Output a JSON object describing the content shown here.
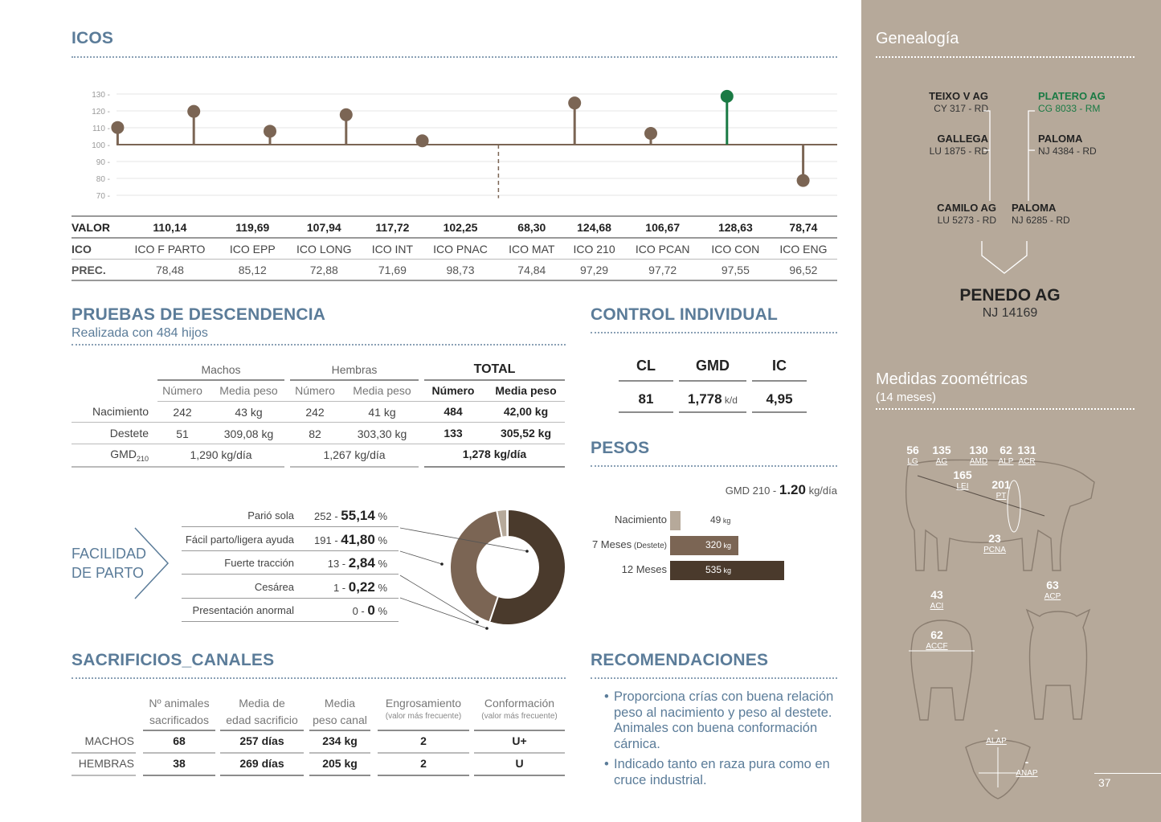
{
  "icos": {
    "title": "ICOS",
    "row_labels": {
      "valor": "VALOR",
      "ico": "ICO",
      "prec": "PREC."
    },
    "columns": [
      {
        "name": "ICO F PARTO",
        "valor": "110,14",
        "prec": "78,48"
      },
      {
        "name": "ICO EPP",
        "valor": "119,69",
        "prec": "85,12"
      },
      {
        "name": "ICO LONG",
        "valor": "107,94",
        "prec": "72,88"
      },
      {
        "name": "ICO INT",
        "valor": "117,72",
        "prec": "71,69"
      },
      {
        "name": "ICO PNAC",
        "valor": "102,25",
        "prec": "98,73"
      },
      {
        "name": "ICO MAT",
        "valor": "68,30",
        "prec": "74,84"
      },
      {
        "name": "ICO 210",
        "valor": "124,68",
        "prec": "97,29"
      },
      {
        "name": "ICO PCAN",
        "valor": "106,67",
        "prec": "97,72"
      },
      {
        "name": "ICO CON",
        "valor": "128,63",
        "prec": "97,55"
      },
      {
        "name": "ICO ENG",
        "valor": "78,74",
        "prec": "96,52"
      }
    ],
    "highlight_color": "#1a7a44",
    "accent_color": "#7b6554"
  },
  "chart_data": {
    "type": "scatter",
    "categories": [
      "ICO F PARTO",
      "ICO EPP",
      "ICO LONG",
      "ICO INT",
      "ICO PNAC",
      "ICO MAT",
      "ICO 210",
      "ICO PCAN",
      "ICO CON",
      "ICO ENG"
    ],
    "values": [
      110.14,
      119.69,
      107.94,
      117.72,
      102.25,
      68.3,
      124.68,
      106.67,
      128.63,
      78.74
    ],
    "baseline": 100,
    "ylim": [
      70,
      130
    ],
    "yticks": [
      "130 -",
      "120 -",
      "110 -",
      "100 -",
      "90 -",
      "80 -",
      "70 -"
    ],
    "grid": true,
    "highlight_index": 8,
    "dashed_index": 5
  },
  "descendencia": {
    "title": "PRUEBAS DE DESCENDENCIA",
    "subtitle": "Realizada con 484 hijos",
    "groups": {
      "machos": "Machos",
      "hembras": "Hembras",
      "total": "TOTAL"
    },
    "col_numero": "Número",
    "col_media": "Media peso",
    "rows": [
      {
        "label": "Nacimiento",
        "m_num": "242",
        "m_peso": "43 kg",
        "h_num": "242",
        "h_peso": "41 kg",
        "t_num": "484",
        "t_peso": "42,00 kg"
      },
      {
        "label": "Destete",
        "m_num": "51",
        "m_peso": "309,08 kg",
        "h_num": "82",
        "h_peso": "303,30 kg",
        "t_num": "133",
        "t_peso": "305,52 kg"
      }
    ],
    "gmd": {
      "label": "GMD",
      "sub": "210",
      "machos": "1,290 kg/día",
      "hembras": "1,267 kg/día",
      "total": "1,278 kg/día"
    }
  },
  "facilidad": {
    "title_line1": "FACILIDAD",
    "title_line2": "DE PARTO",
    "items": [
      {
        "label": "Parió sola",
        "count": "252 - ",
        "pct": "55,14",
        "unit": " %",
        "value": 55.14,
        "color": "#4a3a2c"
      },
      {
        "label": "Fácil parto/ligera ayuda",
        "count": "191 - ",
        "pct": "41,80",
        "unit": " %",
        "value": 41.8,
        "color": "#7b6554"
      },
      {
        "label": "Fuerte tracción",
        "count": "13 - ",
        "pct": "2,84",
        "unit": " %",
        "value": 2.84,
        "color": "#b6a99a"
      },
      {
        "label": "Cesárea",
        "count": "1 - ",
        "pct": "0,22",
        "unit": " %",
        "value": 0.22,
        "color": "#ddd"
      },
      {
        "label": "Presentación anormal",
        "count": "0 - ",
        "pct": "0",
        "unit": " %",
        "value": 0,
        "color": "#eee"
      }
    ]
  },
  "control": {
    "title": "CONTROL INDIVIDUAL",
    "headers": [
      "CL",
      "GMD",
      "IC"
    ],
    "values": {
      "cl": "81",
      "gmd": "1,778",
      "gmd_unit": " k/d",
      "ic": "4,95"
    }
  },
  "pesos": {
    "title": "PESOS",
    "gmd_label": "GMD 210 - ",
    "gmd_value": "1.20",
    "gmd_unit": " kg/día",
    "bars": [
      {
        "label": "Nacimiento",
        "label_small": "",
        "value": 49,
        "value_text": "49",
        "unit": " kg",
        "color": "#b6a99a"
      },
      {
        "label": "7 Meses",
        "label_small": " (Destete)",
        "value": 320,
        "value_text": "320",
        "unit": " kg",
        "color": "#7b6554"
      },
      {
        "label": "12 Meses",
        "label_small": "",
        "value": 535,
        "value_text": "535",
        "unit": " kg",
        "color": "#4a3a2c"
      }
    ]
  },
  "sacrificios": {
    "title": "SACRIFICIOS_CANALES",
    "headers": [
      {
        "l1": "Nº animales",
        "l2": "sacrificados",
        "small": ""
      },
      {
        "l1": "Media de",
        "l2": "edad sacrificio",
        "small": ""
      },
      {
        "l1": "Media",
        "l2": "peso canal",
        "small": ""
      },
      {
        "l1": "Engrosamiento",
        "l2": "",
        "small": "(valor más frecuente)"
      },
      {
        "l1": "Conformación",
        "l2": "",
        "small": "(valor más frecuente)"
      }
    ],
    "rows": [
      {
        "label": "MACHOS",
        "cells": [
          "68",
          "257 días",
          "234 kg",
          "2",
          "U+"
        ]
      },
      {
        "label": "HEMBRAS",
        "cells": [
          "38",
          "269 días",
          "205 kg",
          "2",
          "U"
        ]
      }
    ]
  },
  "recomendaciones": {
    "title": "RECOMENDACIONES",
    "items": [
      "Proporciona crías con buena relación peso al nacimiento y peso al destete. Animales con buena conformación cárnica.",
      "Indicado tanto en raza pura como en cruce industrial."
    ]
  },
  "genealogia": {
    "title": "Genealogía",
    "ancestors": [
      {
        "name": "TEIXO V AG",
        "code": "CY 317 - RD"
      },
      {
        "name": "PLATERO AG",
        "code": "CG 8033 - RM"
      },
      {
        "name": "GALLEGA",
        "code": "LU 1875 - RD"
      },
      {
        "name": "PALOMA",
        "code": "NJ 4384 - RD"
      },
      {
        "name": "CAMILO AG",
        "code": "LU 5273 - RD"
      },
      {
        "name": "PALOMA",
        "code": "NJ 6285 - RD"
      }
    ],
    "animal": {
      "name": "PENEDO AG",
      "code": "NJ 14169"
    }
  },
  "zoometria": {
    "title": "Medidas zoométricas",
    "subtitle": "(14 meses)",
    "measures": [
      {
        "value": "56",
        "label": "LG"
      },
      {
        "value": "135",
        "label": "AG"
      },
      {
        "value": "130",
        "label": "AMD"
      },
      {
        "value": "62",
        "label": "ALP"
      },
      {
        "value": "131",
        "label": "ACR"
      },
      {
        "value": "165",
        "label": "LEI"
      },
      {
        "value": "201",
        "label": "PT"
      },
      {
        "value": "23",
        "label": "PCNA"
      },
      {
        "value": "43",
        "label": "ACI"
      },
      {
        "value": "62",
        "label": "ACCF"
      },
      {
        "value": "63",
        "label": "ACP"
      },
      {
        "value": "-",
        "label": "ALAP"
      },
      {
        "value": "-",
        "label": "ANAP"
      }
    ]
  },
  "page_number": "37"
}
